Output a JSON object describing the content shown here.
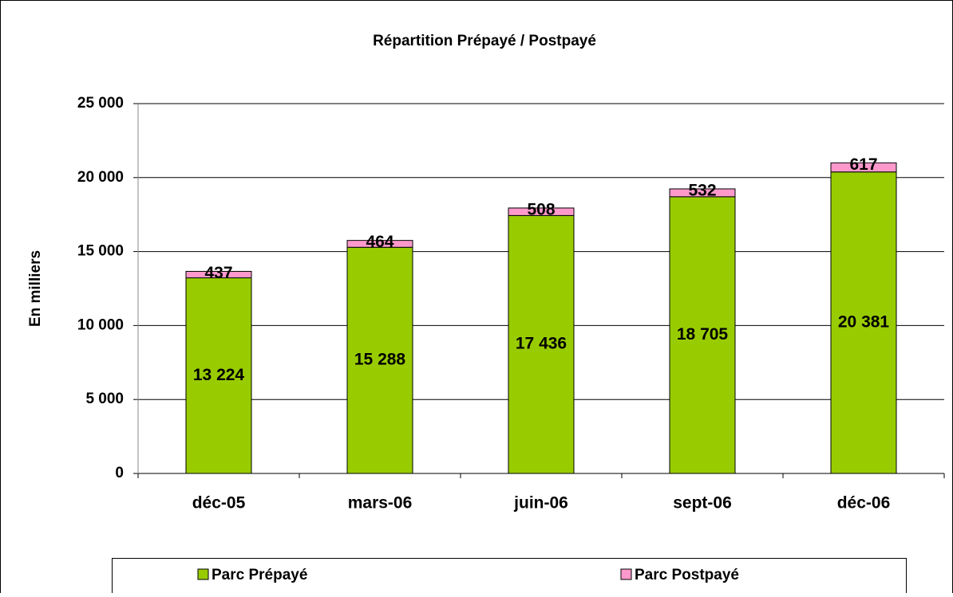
{
  "chart_data": {
    "type": "stacked_bar",
    "title": "Répartition Prépayé / Postpayé",
    "ylabel": "En milliers",
    "categories": [
      "déc-05",
      "mars-06",
      "juin-06",
      "sept-06",
      "déc-06"
    ],
    "series": [
      {
        "name": "Parc Prépayé",
        "color": "#99cc00",
        "values": [
          13224,
          15288,
          17436,
          18705,
          20381
        ],
        "value_labels": [
          "13 224",
          "15 288",
          "17 436",
          "18 705",
          "20 381"
        ]
      },
      {
        "name": "Parc Postpayé",
        "color": "#ff99cc",
        "values": [
          437,
          464,
          508,
          532,
          617
        ],
        "value_labels": [
          "437",
          "464",
          "508",
          "532",
          "617"
        ]
      }
    ],
    "ylim": [
      0,
      25000
    ],
    "yticks": [
      {
        "value": 0,
        "label": "0"
      },
      {
        "value": 5000,
        "label": "5 000"
      },
      {
        "value": 10000,
        "label": "10 000"
      },
      {
        "value": 15000,
        "label": "15 000"
      },
      {
        "value": 20000,
        "label": "20 000"
      },
      {
        "value": 25000,
        "label": "25 000"
      }
    ],
    "grid": true,
    "legend": "bottom"
  }
}
